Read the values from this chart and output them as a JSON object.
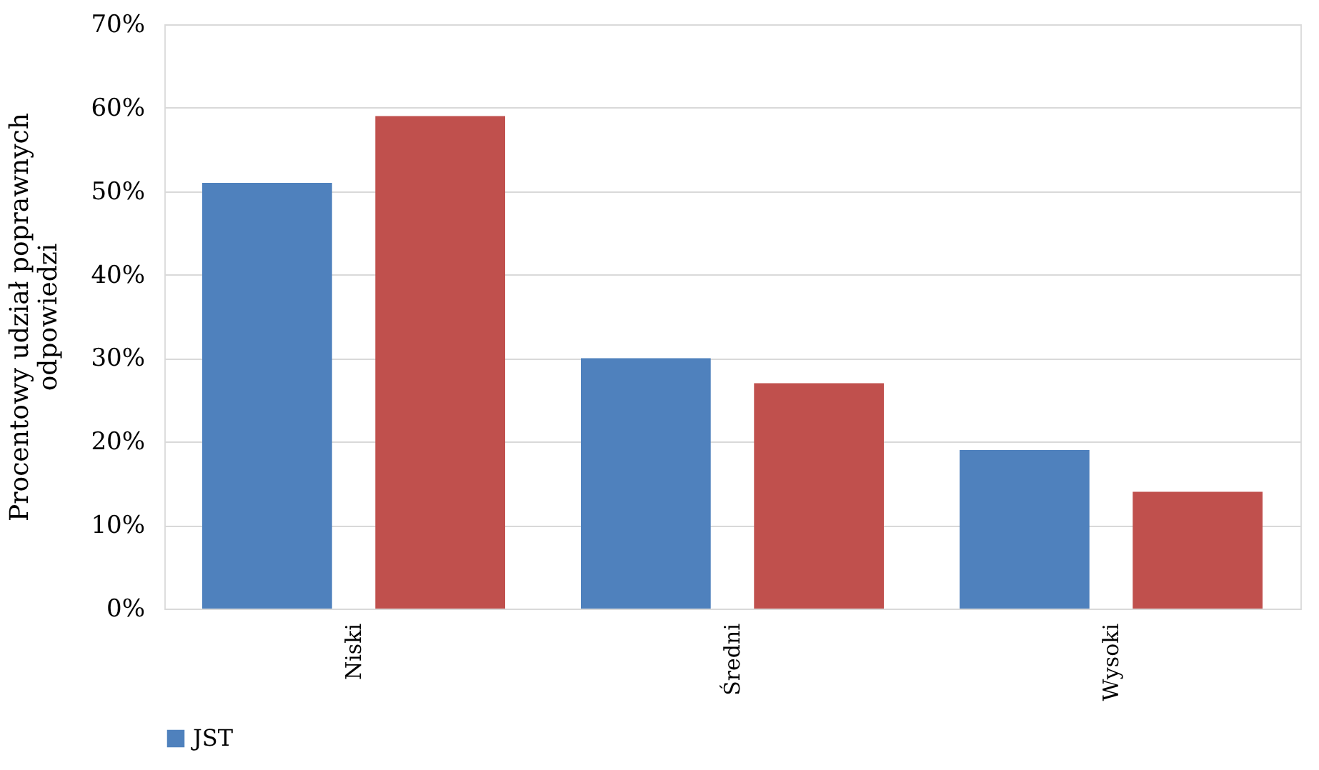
{
  "chart_data": {
    "type": "bar",
    "ylabel": "Procentowy udział poprawnych odpowiedzi",
    "categories": [
      "Niski",
      "Średni",
      "Wysoki"
    ],
    "series": [
      {
        "name": "JST",
        "color": "#4f81bd",
        "values": [
          51,
          30,
          19
        ]
      },
      {
        "color": "#c0504d",
        "values": [
          59,
          27,
          14
        ]
      }
    ],
    "ylim": [
      0,
      70
    ],
    "yticks": [
      {
        "value": 0,
        "label": "0%"
      },
      {
        "value": 10,
        "label": "10%"
      },
      {
        "value": 20,
        "label": "20%"
      },
      {
        "value": 30,
        "label": "30%"
      },
      {
        "value": 40,
        "label": "40%"
      },
      {
        "value": 50,
        "label": "50%"
      },
      {
        "value": 60,
        "label": "60%"
      },
      {
        "value": 70,
        "label": "70%"
      }
    ],
    "grid": "y",
    "legend": "bottom"
  }
}
